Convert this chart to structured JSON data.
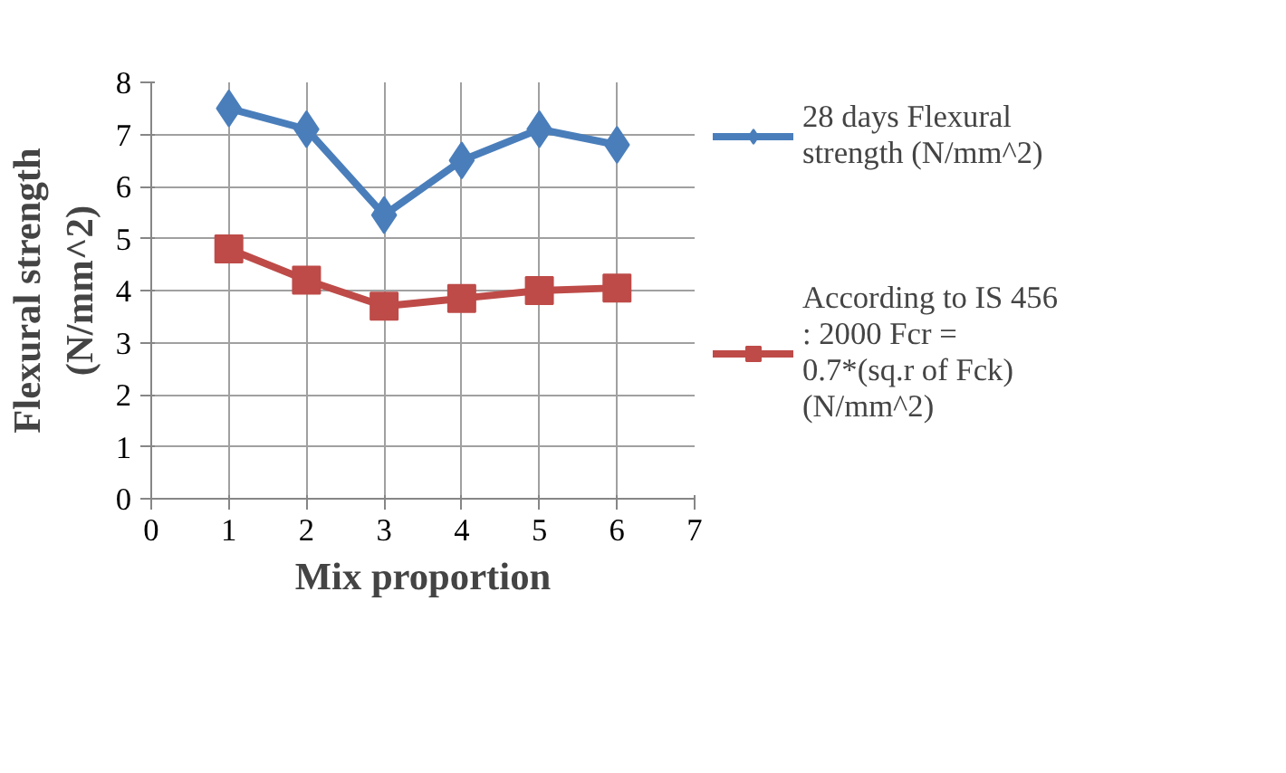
{
  "chart_data": {
    "type": "line",
    "xlabel": "Mix proportion",
    "ylabel": "Flexural strength (N/mm^2)",
    "x": [
      1,
      2,
      3,
      4,
      5,
      6
    ],
    "series": [
      {
        "name": "28 days Flexural strength (N/mm^2)",
        "color": "#4a7ebb",
        "marker": "diamond",
        "values": [
          7.5,
          7.1,
          5.45,
          6.5,
          7.1,
          6.8
        ]
      },
      {
        "name": "According to IS 456 : 2000 Fcr = 0.7*(sq.r of Fck) (N/mm^2)",
        "color": "#be4b48",
        "marker": "square",
        "values": [
          4.8,
          4.2,
          3.7,
          3.85,
          4.0,
          4.05
        ]
      }
    ],
    "xlim": [
      0,
      7
    ],
    "xticks": [
      0,
      1,
      2,
      3,
      4,
      5,
      6,
      7
    ],
    "ylim": [
      0,
      8
    ],
    "yticks": [
      0,
      1,
      2,
      3,
      4,
      5,
      6,
      7,
      8
    ],
    "grid": true,
    "legend": "right",
    "line_style": "solid"
  }
}
